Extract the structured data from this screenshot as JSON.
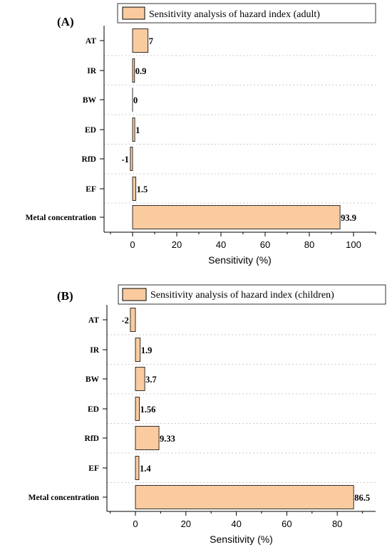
{
  "chart_data": [
    {
      "type": "bar",
      "orientation": "horizontal",
      "panel_label": "(A)",
      "legend": "Sensitivity analysis of hazard index (adult)",
      "categories": [
        "AT",
        "IR",
        "BW",
        "ED",
        "RfD",
        "EF",
        "Metal concentration"
      ],
      "values": [
        7,
        0.9,
        0,
        1,
        -1,
        1.5,
        93.9
      ],
      "value_labels": [
        "7",
        "0.9",
        "0",
        "1",
        "-1",
        "1.5",
        "93.9"
      ],
      "xlabel": "Sensitivity (%)",
      "xticks": [
        0,
        20,
        40,
        60,
        80,
        100
      ],
      "xlim": [
        -10,
        105
      ],
      "legend_position": "top",
      "color": "#FBCBA0",
      "grid": "dotted horizontal separators"
    },
    {
      "type": "bar",
      "orientation": "horizontal",
      "panel_label": "(B)",
      "legend": "Sensitivity analysis of hazard index (children)",
      "categories": [
        "AT",
        "IR",
        "BW",
        "ED",
        "RfD",
        "EF",
        "Metal concentration"
      ],
      "values": [
        -2,
        1.9,
        3.7,
        1.56,
        9.33,
        1.4,
        86.5
      ],
      "value_labels": [
        "-2",
        "1.9",
        "3.7",
        "1.56",
        "9.33",
        "1.4",
        "86.5"
      ],
      "xlabel": "Sensitivity (%)",
      "xticks": [
        0,
        20,
        40,
        60,
        80
      ],
      "xlim": [
        -10,
        95
      ],
      "legend_position": "top",
      "color": "#FBCBA0",
      "grid": "dotted horizontal separators"
    }
  ]
}
